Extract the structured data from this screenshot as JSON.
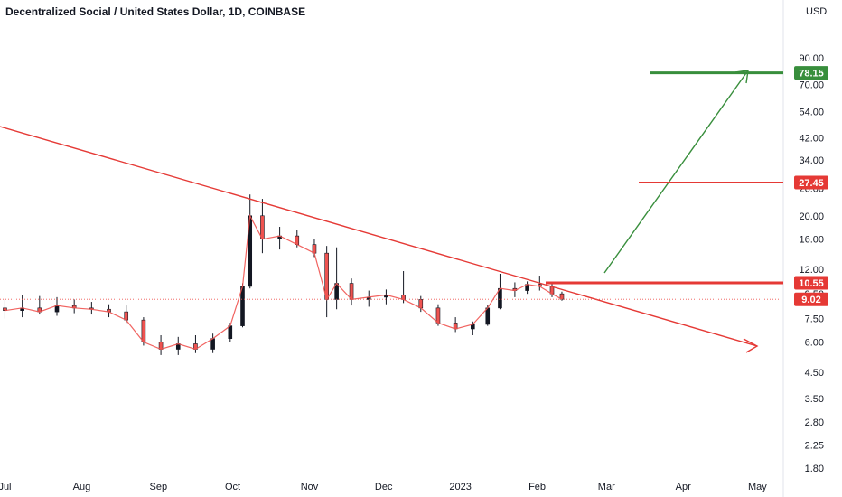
{
  "chart_data": {
    "type": "candlestick",
    "title": "Decentralized Social / United States Dollar, 1D, COINBASE",
    "currency_label": "USD",
    "y_scale": "log",
    "ylim": [
      1.72,
      114
    ],
    "grid": false,
    "y_ticks": [
      "90.00",
      "70.00",
      "54.00",
      "42.00",
      "34.00",
      "26.00",
      "20.00",
      "16.00",
      "12.00",
      "9.50",
      "7.50",
      "6.00",
      "4.50",
      "3.50",
      "2.80",
      "2.25",
      "1.80"
    ],
    "x_ticks": [
      "Jul",
      "Aug",
      "Sep",
      "Oct",
      "Nov",
      "Dec",
      "2023",
      "Feb",
      "Mar",
      "Apr",
      "May"
    ],
    "price_tags": [
      {
        "label": "78.15",
        "value": 78.15,
        "color": "#388e3c"
      },
      {
        "label": "27.45",
        "value": 27.45,
        "color": "#e53935"
      },
      {
        "label": "10.55",
        "value": 10.55,
        "color": "#e53935"
      },
      {
        "label": "9.02",
        "value": 9.02,
        "color": "#e53935"
      }
    ],
    "current_price": 9.02,
    "colors": {
      "up": "#26a69a",
      "down": "#ef5350",
      "candle": "#131722",
      "trendline": "#e53935",
      "target_up": "#388e3c"
    },
    "series": [
      {
        "x": "2022-07-01",
        "o": 8.3,
        "h": 9.0,
        "l": 7.5,
        "c": 8.1
      },
      {
        "x": "2022-07-08",
        "o": 8.1,
        "h": 9.4,
        "l": 7.6,
        "c": 8.3
      },
      {
        "x": "2022-07-15",
        "o": 8.3,
        "h": 9.3,
        "l": 7.8,
        "c": 8.0
      },
      {
        "x": "2022-07-22",
        "o": 8.0,
        "h": 9.2,
        "l": 7.7,
        "c": 8.5
      },
      {
        "x": "2022-07-29",
        "o": 8.5,
        "h": 9.0,
        "l": 7.9,
        "c": 8.3
      },
      {
        "x": "2022-08-05",
        "o": 8.3,
        "h": 8.8,
        "l": 7.8,
        "c": 8.2
      },
      {
        "x": "2022-08-12",
        "o": 8.2,
        "h": 8.6,
        "l": 7.6,
        "c": 8.0
      },
      {
        "x": "2022-08-19",
        "o": 8.0,
        "h": 8.5,
        "l": 7.2,
        "c": 7.4
      },
      {
        "x": "2022-08-26",
        "o": 7.4,
        "h": 7.6,
        "l": 5.8,
        "c": 6.0
      },
      {
        "x": "2022-09-02",
        "o": 6.0,
        "h": 6.4,
        "l": 5.3,
        "c": 5.6
      },
      {
        "x": "2022-09-09",
        "o": 5.6,
        "h": 6.3,
        "l": 5.3,
        "c": 5.9
      },
      {
        "x": "2022-09-16",
        "o": 5.9,
        "h": 6.4,
        "l": 5.4,
        "c": 5.6
      },
      {
        "x": "2022-09-23",
        "o": 5.6,
        "h": 6.5,
        "l": 5.4,
        "c": 6.2
      },
      {
        "x": "2022-09-30",
        "o": 6.2,
        "h": 7.2,
        "l": 6.0,
        "c": 7.0
      },
      {
        "x": "2022-10-05",
        "o": 7.0,
        "h": 10.5,
        "l": 6.9,
        "c": 10.2
      },
      {
        "x": "2022-10-08",
        "o": 10.2,
        "h": 24.5,
        "l": 10.0,
        "c": 20.0
      },
      {
        "x": "2022-10-13",
        "o": 20.0,
        "h": 23.5,
        "l": 14.0,
        "c": 16.0
      },
      {
        "x": "2022-10-20",
        "o": 16.0,
        "h": 18.0,
        "l": 14.5,
        "c": 16.5
      },
      {
        "x": "2022-10-27",
        "o": 16.5,
        "h": 17.5,
        "l": 14.8,
        "c": 15.2
      },
      {
        "x": "2022-11-03",
        "o": 15.2,
        "h": 16.0,
        "l": 13.5,
        "c": 14.0
      },
      {
        "x": "2022-11-08",
        "o": 14.0,
        "h": 15.0,
        "l": 7.6,
        "c": 9.0
      },
      {
        "x": "2022-11-12",
        "o": 9.0,
        "h": 14.8,
        "l": 8.2,
        "c": 10.5
      },
      {
        "x": "2022-11-18",
        "o": 10.5,
        "h": 11.0,
        "l": 8.5,
        "c": 9.0
      },
      {
        "x": "2022-11-25",
        "o": 9.0,
        "h": 9.8,
        "l": 8.4,
        "c": 9.2
      },
      {
        "x": "2022-12-02",
        "o": 9.2,
        "h": 9.9,
        "l": 8.6,
        "c": 9.4
      },
      {
        "x": "2022-12-09",
        "o": 9.4,
        "h": 11.8,
        "l": 8.7,
        "c": 9.0
      },
      {
        "x": "2022-12-16",
        "o": 9.0,
        "h": 9.3,
        "l": 8.0,
        "c": 8.3
      },
      {
        "x": "2022-12-23",
        "o": 8.3,
        "h": 8.6,
        "l": 7.0,
        "c": 7.2
      },
      {
        "x": "2022-12-30",
        "o": 7.2,
        "h": 7.6,
        "l": 6.6,
        "c": 6.8
      },
      {
        "x": "2023-01-06",
        "o": 6.8,
        "h": 7.3,
        "l": 6.4,
        "c": 7.1
      },
      {
        "x": "2023-01-12",
        "o": 7.1,
        "h": 8.5,
        "l": 7.0,
        "c": 8.3
      },
      {
        "x": "2023-01-17",
        "o": 8.3,
        "h": 11.5,
        "l": 8.2,
        "c": 10.0
      },
      {
        "x": "2023-01-23",
        "o": 10.0,
        "h": 10.6,
        "l": 9.2,
        "c": 9.8
      },
      {
        "x": "2023-01-28",
        "o": 9.8,
        "h": 10.7,
        "l": 9.5,
        "c": 10.4
      },
      {
        "x": "2023-02-02",
        "o": 10.4,
        "h": 11.3,
        "l": 9.8,
        "c": 10.2
      },
      {
        "x": "2023-02-07",
        "o": 10.2,
        "h": 10.6,
        "l": 9.2,
        "c": 9.5
      },
      {
        "x": "2023-02-11",
        "o": 9.5,
        "h": 9.7,
        "l": 8.9,
        "c": 9.02
      }
    ]
  }
}
